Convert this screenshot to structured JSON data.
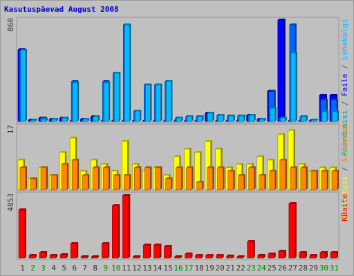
{
  "title": "Kasutuspäevad August 2008",
  "chart_data": {
    "type": "bar",
    "title": "Kasutuspäevad August 2008",
    "categories": [
      "1",
      "2",
      "3",
      "4",
      "5",
      "6",
      "7",
      "8",
      "9",
      "10",
      "11",
      "12",
      "13",
      "14",
      "15",
      "16",
      "17",
      "18",
      "19",
      "20",
      "21",
      "22",
      "23",
      "24",
      "25",
      "26",
      "27",
      "28",
      "29",
      "30",
      "31"
    ],
    "weekend_days": [
      "2",
      "3",
      "9",
      "10",
      "16",
      "17",
      "23",
      "24",
      "30",
      "31"
    ],
    "panels": [
      {
        "name": "top",
        "ymax_label": "860",
        "ymax": 860,
        "right_labels": [
          {
            "text": "Pöördumisi",
            "color": "#00aa88"
          },
          {
            "text": " / ",
            "color": "#555555"
          },
          {
            "text": "Faile",
            "color": "#0000ff"
          },
          {
            "text": " / ",
            "color": "#555555"
          },
          {
            "text": "Lehekülgi",
            "color": "#00bbff"
          }
        ],
        "series": [
          {
            "name": "Pöördumisi",
            "color": "#0000ff",
            "values": [
              610,
              10,
              30,
              20,
              30,
              0,
              20,
              40,
              0,
              0,
              0,
              0,
              0,
              0,
              0,
              0,
              0,
              0,
              70,
              0,
              0,
              0,
              50,
              20,
              260,
              860,
              0,
              0,
              0,
              220,
              220
            ]
          },
          {
            "name": "Faile",
            "color": "#0066ff",
            "values": [
              600,
              10,
              30,
              20,
              30,
              340,
              20,
              40,
              340,
              410,
              820,
              90,
              310,
              310,
              340,
              30,
              40,
              40,
              70,
              55,
              45,
              45,
              50,
              20,
              250,
              30,
              820,
              40,
              10,
              180,
              180
            ]
          },
          {
            "name": "Lehekülgi",
            "color": "#00bbff",
            "values": [
              600,
              10,
              20,
              15,
              30,
              330,
              20,
              40,
              330,
              410,
              820,
              90,
              310,
              310,
              340,
              30,
              40,
              40,
              70,
              55,
              45,
              45,
              50,
              20,
              110,
              30,
              580,
              40,
              10,
              80,
              80
            ]
          }
        ]
      },
      {
        "name": "middle",
        "ymax_label": "17",
        "ymax": 17,
        "right_labels": [
          {
            "text": "Külastusi",
            "color": "#ffff00"
          },
          {
            "text": " / ",
            "color": "#555555"
          },
          {
            "text": "Arvuteid",
            "color": "#ff8800"
          }
        ],
        "series": [
          {
            "name": "Külastusi",
            "color": "#ffff00",
            "values": [
              8,
              3,
              6,
              4,
              10,
              14,
              5,
              8,
              7,
              5,
              13,
              7,
              5,
              6,
              4,
              9,
              11,
              10,
              13,
              11,
              6,
              7,
              7,
              9,
              8,
              15,
              16,
              7,
              5,
              6,
              6
            ]
          },
          {
            "name": "Arvuteid",
            "color": "#ff8800",
            "values": [
              6,
              3,
              6,
              4,
              7,
              8,
              4,
              6,
              6,
              4,
              4,
              6,
              6,
              6,
              3,
              6,
              6,
              2,
              6,
              6,
              5,
              4,
              6,
              4,
              5,
              8,
              6,
              6,
              5,
              5,
              5
            ]
          }
        ]
      },
      {
        "name": "bottom",
        "ymax_label": "4853",
        "ymax": 4853,
        "right_labels": [
          {
            "text": "KBaite",
            "color": "#ff0000"
          }
        ],
        "series": [
          {
            "name": "KBaite",
            "color": "#ff0000",
            "values": [
              3750,
              200,
              400,
              200,
              250,
              1100,
              100,
              100,
              1100,
              4050,
              4853,
              100,
              1000,
              1000,
              900,
              100,
              300,
              200,
              200,
              200,
              150,
              100,
              1300,
              200,
              300,
              550,
              4200,
              400,
              200,
              400,
              400
            ]
          }
        ]
      }
    ]
  }
}
